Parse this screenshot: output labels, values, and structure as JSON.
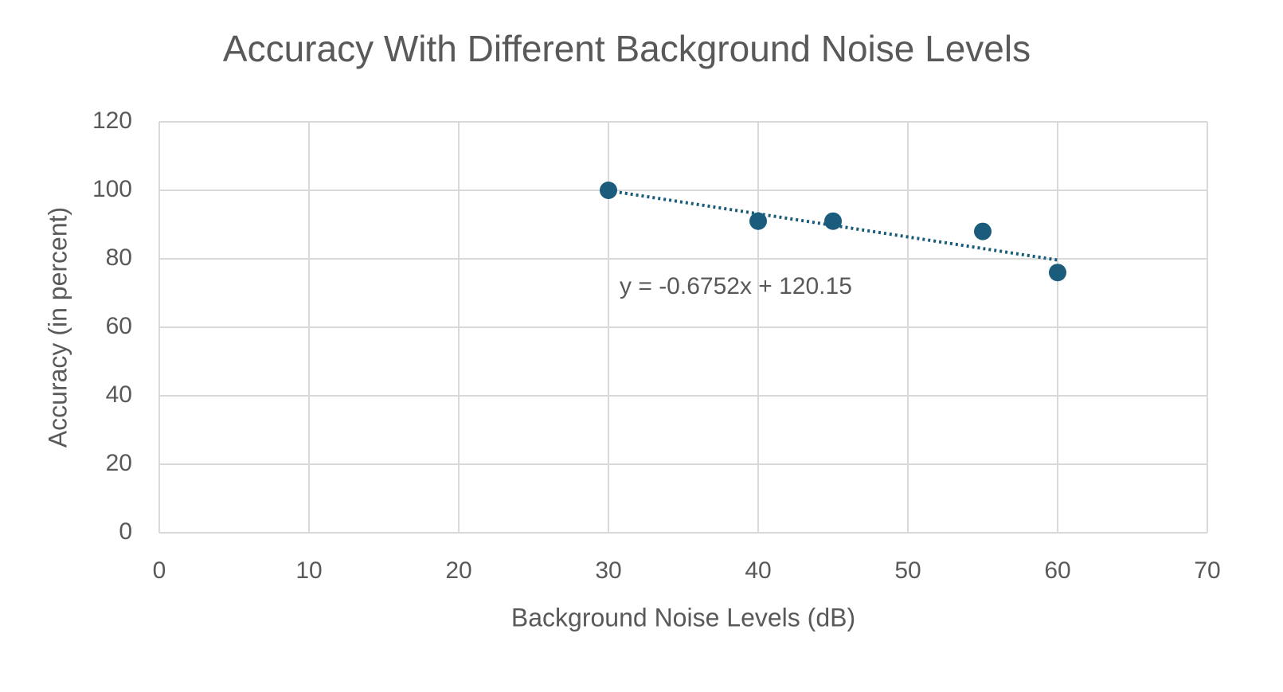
{
  "chart_data": {
    "type": "scatter",
    "title": "Accuracy With Different Background Noise Levels",
    "x_label": "Background Noise Levels (dB)",
    "y_label": "Accuracy (in percent)",
    "series": [
      {
        "name": "Accuracy",
        "color": "#1b5c7c",
        "x": [
          30,
          40,
          45,
          55,
          60
        ],
        "values": [
          100,
          91,
          91,
          88,
          76
        ]
      }
    ],
    "trendline": {
      "slope": -0.6752,
      "intercept": 120.15,
      "label": "y = -0.6752x + 120.15",
      "color": "#1b5c7c"
    },
    "xlim": [
      0,
      70
    ],
    "xticks": [
      0,
      10,
      20,
      30,
      40,
      50,
      60,
      70
    ],
    "ylim": [
      0,
      120
    ],
    "yticks": [
      0,
      20,
      40,
      60,
      80,
      100,
      120
    ],
    "grid": true
  }
}
